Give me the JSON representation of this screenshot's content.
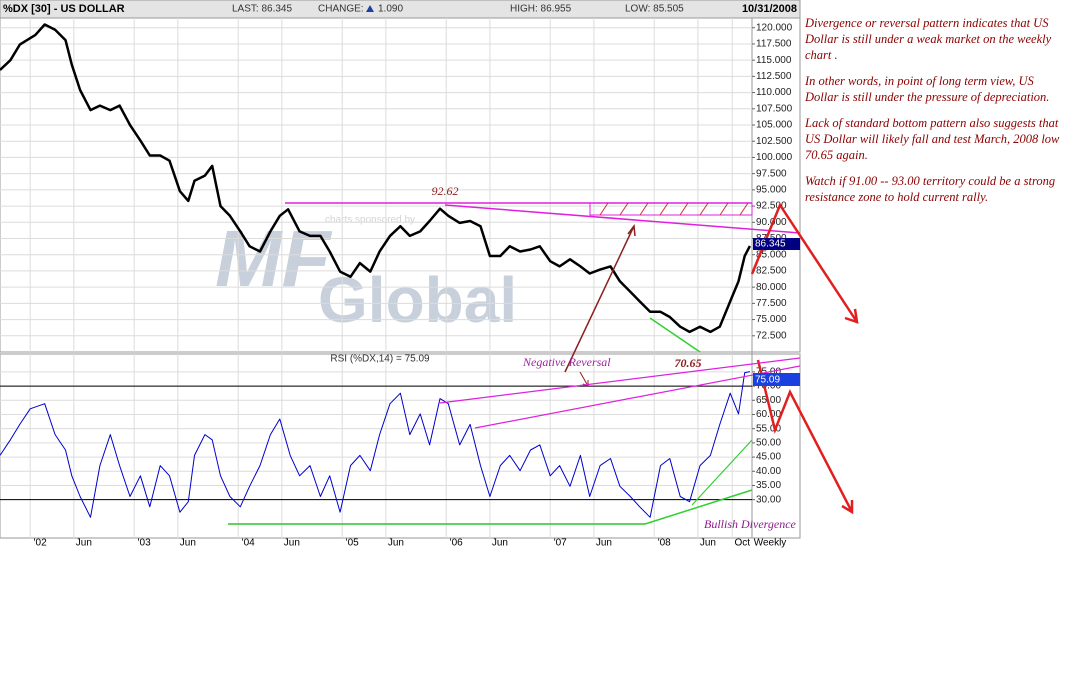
{
  "header": {
    "symbol": "%DX [30] - US DOLLAR",
    "last": "LAST: 86.345",
    "change_label": "CHANGE:",
    "change": "1.090",
    "high": "HIGH: 86.955",
    "low": "LOW: 85.505",
    "date": "10/31/2008"
  },
  "notes": [
    "Divergence or reversal pattern indicates that US Dollar is still under a weak market on the weekly chart .",
    "In other words, in point of  long term view, US Dollar is still under the pressure of depreciation.",
    "Lack of standard bottom pattern also suggests that US Dollar will likely fall and test  March, 2008 low 70.65 again.",
    "Watch if 91.00 -- 93.00 territory could be a strong resistance zone to hold current rally."
  ],
  "chart_data": [
    {
      "type": "line",
      "color": "#000000",
      "watermark": [
        "MF",
        "Global"
      ],
      "sponsor": "charts sponsored by",
      "last_label": "86.345",
      "annotations": [
        "92.62",
        "70.65",
        "Negative Reversal",
        "Bullish Divergence"
      ],
      "x": [
        2001.71,
        2001.81,
        2001.9,
        2002.05,
        2002.14,
        2002.24,
        2002.34,
        2002.4,
        2002.48,
        2002.58,
        2002.67,
        2002.77,
        2002.86,
        2002.96,
        2003.06,
        2003.15,
        2003.25,
        2003.34,
        2003.44,
        2003.52,
        2003.58,
        2003.68,
        2003.75,
        2003.83,
        2003.92,
        2004.02,
        2004.11,
        2004.21,
        2004.31,
        2004.4,
        2004.48,
        2004.59,
        2004.69,
        2004.79,
        2004.88,
        2004.98,
        2005.08,
        2005.17,
        2005.27,
        2005.36,
        2005.46,
        2005.56,
        2005.65,
        2005.75,
        2005.84,
        2005.94,
        2006.02,
        2006.13,
        2006.23,
        2006.33,
        2006.42,
        2006.52,
        2006.61,
        2006.71,
        2006.81,
        2006.9,
        2007.0,
        2007.09,
        2007.19,
        2007.29,
        2007.38,
        2007.48,
        2007.58,
        2007.67,
        2007.77,
        2007.86,
        2007.96,
        2008.06,
        2008.15,
        2008.25,
        2008.34,
        2008.44,
        2008.54,
        2008.63,
        2008.73,
        2008.81,
        2008.87,
        2008.92
      ],
      "values": [
        113.5,
        115,
        117.4,
        118.9,
        120.5,
        119.7,
        118.1,
        114.3,
        110.4,
        107.3,
        108,
        107.3,
        108,
        105,
        102.6,
        100.3,
        100.3,
        99.5,
        94.8,
        93.3,
        96.4,
        97.2,
        98.7,
        92.5,
        91,
        88.6,
        86.3,
        85.5,
        88.6,
        91,
        92,
        88.6,
        87.9,
        87.9,
        85.5,
        82.4,
        81.6,
        83.7,
        82.4,
        85.5,
        87.9,
        89.4,
        87.9,
        88.6,
        90.2,
        92.1,
        91,
        89.9,
        90.2,
        89.4,
        84.8,
        84.8,
        86.3,
        85.5,
        85.8,
        86.3,
        84,
        83.2,
        84.3,
        83.2,
        82.1,
        82.7,
        83.2,
        80.9,
        79.3,
        77.8,
        76.2,
        76.2,
        75.4,
        73.9,
        73.1,
        73.9,
        73.1,
        73.9,
        77.8,
        80.9,
        84.8,
        86.345
      ],
      "xlim": [
        2001.71,
        2008.94
      ],
      "xticks": [
        {
          "value": 2002,
          "label": "'02"
        },
        {
          "value": 2002.42,
          "label": "Jun"
        },
        {
          "value": 2003,
          "label": "'03"
        },
        {
          "value": 2003.42,
          "label": "Jun"
        },
        {
          "value": 2004,
          "label": "'04"
        },
        {
          "value": 2004.42,
          "label": "Jun"
        },
        {
          "value": 2005,
          "label": "'05"
        },
        {
          "value": 2005.42,
          "label": "Jun"
        },
        {
          "value": 2006,
          "label": "'06"
        },
        {
          "value": 2006.42,
          "label": "Jun"
        },
        {
          "value": 2007,
          "label": "'07"
        },
        {
          "value": 2007.42,
          "label": "Jun"
        },
        {
          "value": 2008,
          "label": "'08"
        },
        {
          "value": 2008.42,
          "label": "Jun"
        },
        {
          "value": 2008.75,
          "label": "Oct"
        }
      ],
      "ylim": [
        70.0,
        121.5
      ],
      "yticks": [
        {
          "value": 72.5,
          "label": "72.500"
        },
        {
          "value": 75,
          "label": "75.000"
        },
        {
          "value": 77.5,
          "label": "77.500"
        },
        {
          "value": 80,
          "label": "80.000"
        },
        {
          "value": 82.5,
          "label": "82.500"
        },
        {
          "value": 85,
          "label": "85.000"
        },
        {
          "value": 87.5,
          "label": "87.500"
        },
        {
          "value": 90,
          "label": "90.000"
        },
        {
          "value": 92.5,
          "label": "92.500"
        },
        {
          "value": 95,
          "label": "95.000"
        },
        {
          "value": 97.5,
          "label": "97.500"
        },
        {
          "value": 100,
          "label": "100.000"
        },
        {
          "value": 102.5,
          "label": "102.500"
        },
        {
          "value": 105,
          "label": "105.000"
        },
        {
          "value": 107.5,
          "label": "107.500"
        },
        {
          "value": 110,
          "label": "110.000"
        },
        {
          "value": 112.5,
          "label": "112.500"
        },
        {
          "value": 115,
          "label": "115.000"
        },
        {
          "value": 117.5,
          "label": "117.500"
        },
        {
          "value": 120,
          "label": "120.000"
        }
      ],
      "grid": true
    },
    {
      "type": "line",
      "title": "RSI (%DX,14) = 75.09",
      "color": "#0000cc",
      "last_label": "75.09",
      "period": "Weekly",
      "levels": [
        30,
        70
      ],
      "x": [
        2001.71,
        2001.81,
        2001.9,
        2002.0,
        2002.14,
        2002.24,
        2002.34,
        2002.4,
        2002.48,
        2002.58,
        2002.67,
        2002.77,
        2002.86,
        2002.96,
        2003.06,
        2003.15,
        2003.25,
        2003.34,
        2003.44,
        2003.52,
        2003.58,
        2003.68,
        2003.75,
        2003.83,
        2003.92,
        2004.02,
        2004.11,
        2004.21,
        2004.31,
        2004.4,
        2004.5,
        2004.59,
        2004.69,
        2004.79,
        2004.88,
        2004.98,
        2005.08,
        2005.17,
        2005.27,
        2005.36,
        2005.46,
        2005.56,
        2005.65,
        2005.75,
        2005.84,
        2005.94,
        2006.02,
        2006.13,
        2006.23,
        2006.33,
        2006.42,
        2006.52,
        2006.61,
        2006.71,
        2006.81,
        2006.9,
        2007.0,
        2007.09,
        2007.19,
        2007.29,
        2007.38,
        2007.48,
        2007.58,
        2007.67,
        2007.77,
        2007.86,
        2007.96,
        2008.06,
        2008.15,
        2008.25,
        2008.34,
        2008.44,
        2008.54,
        2008.63,
        2008.73,
        2008.81,
        2008.87,
        2008.92
      ],
      "values": [
        45.6,
        51.1,
        56.5,
        62,
        63.8,
        52.9,
        47.5,
        38.4,
        31.1,
        23.8,
        42,
        52.9,
        42,
        31.1,
        38.4,
        27.5,
        42,
        38.4,
        25.6,
        29.3,
        45.6,
        52.9,
        51.1,
        38.4,
        31.1,
        27.5,
        34.7,
        42,
        52.9,
        58.4,
        45.6,
        38.4,
        42,
        31.1,
        38.4,
        25.6,
        42,
        45.6,
        40.2,
        52.9,
        63.8,
        67.5,
        52.9,
        60.2,
        49.3,
        65.6,
        63.8,
        49.3,
        56.5,
        42,
        31.1,
        42,
        45.6,
        40.2,
        47.5,
        49.3,
        38.4,
        42,
        34.7,
        45.6,
        31.1,
        42,
        44.5,
        34.7,
        31.1,
        27.5,
        23.8,
        42,
        44.5,
        31.1,
        29.3,
        42,
        45.6,
        56.5,
        67.5,
        60.2,
        74.7,
        75.09
      ],
      "xlim": [
        2001.71,
        2008.94
      ],
      "xticks": [
        {
          "value": 2002,
          "label": "'02"
        },
        {
          "value": 2002.42,
          "label": "Jun"
        },
        {
          "value": 2003,
          "label": "'03"
        },
        {
          "value": 2003.42,
          "label": "Jun"
        },
        {
          "value": 2004,
          "label": "'04"
        },
        {
          "value": 2004.42,
          "label": "Jun"
        },
        {
          "value": 2005,
          "label": "'05"
        },
        {
          "value": 2005.42,
          "label": "Jun"
        },
        {
          "value": 2006,
          "label": "'06"
        },
        {
          "value": 2006.42,
          "label": "Jun"
        },
        {
          "value": 2007,
          "label": "'07"
        },
        {
          "value": 2007.42,
          "label": "Jun"
        },
        {
          "value": 2008,
          "label": "'08"
        },
        {
          "value": 2008.42,
          "label": "Jun"
        },
        {
          "value": 2008.75,
          "label": "Oct"
        }
      ],
      "ylim": [
        16.5,
        81.3
      ],
      "yticks": [
        {
          "value": 30,
          "label": "30.00"
        },
        {
          "value": 35,
          "label": "35.00"
        },
        {
          "value": 40,
          "label": "40.00"
        },
        {
          "value": 45,
          "label": "45.00"
        },
        {
          "value": 50,
          "label": "50.00"
        },
        {
          "value": 55,
          "label": "55.00"
        },
        {
          "value": 60,
          "label": "60.00"
        },
        {
          "value": 65,
          "label": "65.00"
        },
        {
          "value": 70,
          "label": "70.00"
        },
        {
          "value": 75,
          "label": "75.00"
        }
      ],
      "grid": true
    }
  ]
}
